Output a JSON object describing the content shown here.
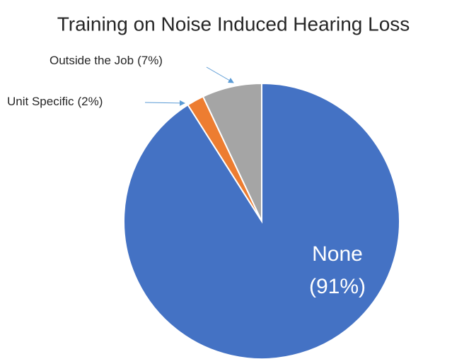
{
  "chart_data": {
    "type": "pie",
    "title": "Training on Noise Induced Hearing Loss",
    "categories": [
      "None",
      "Unit Specific",
      "Outside the Job"
    ],
    "values": [
      91,
      2,
      7
    ],
    "value_labels": [
      "(91%)",
      "(2%)",
      "(7%)"
    ],
    "colors": [
      "#4472c4",
      "#ed7d31",
      "#a5a5a5"
    ]
  }
}
